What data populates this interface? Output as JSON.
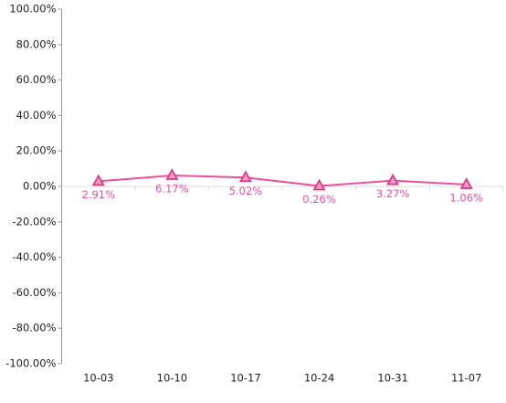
{
  "chart_data": {
    "type": "line",
    "categories": [
      "10-03",
      "10-10",
      "10-17",
      "10-24",
      "10-31",
      "11-07"
    ],
    "values": [
      2.91,
      6.17,
      5.02,
      0.26,
      3.27,
      1.06
    ],
    "value_labels": [
      "2.91%",
      "6.17%",
      "5.02%",
      "0.26%",
      "3.27%",
      "1.06%"
    ],
    "color": "#ee4f98",
    "ylim": [
      -100,
      100
    ],
    "yticks": [
      {
        "value": -100,
        "label": "-100.00%"
      },
      {
        "value": -80,
        "label": "-80.00%"
      },
      {
        "value": -60,
        "label": "-60.00%"
      },
      {
        "value": -40,
        "label": "-40.00%"
      },
      {
        "value": -20,
        "label": "-20.00%"
      },
      {
        "value": 0,
        "label": "0.00%"
      },
      {
        "value": 20,
        "label": "20.00%"
      },
      {
        "value": 40,
        "label": "40.00%"
      },
      {
        "value": 60,
        "label": "60.00%"
      },
      {
        "value": 80,
        "label": "80.00%"
      },
      {
        "value": 100,
        "label": "100.00%"
      }
    ]
  }
}
